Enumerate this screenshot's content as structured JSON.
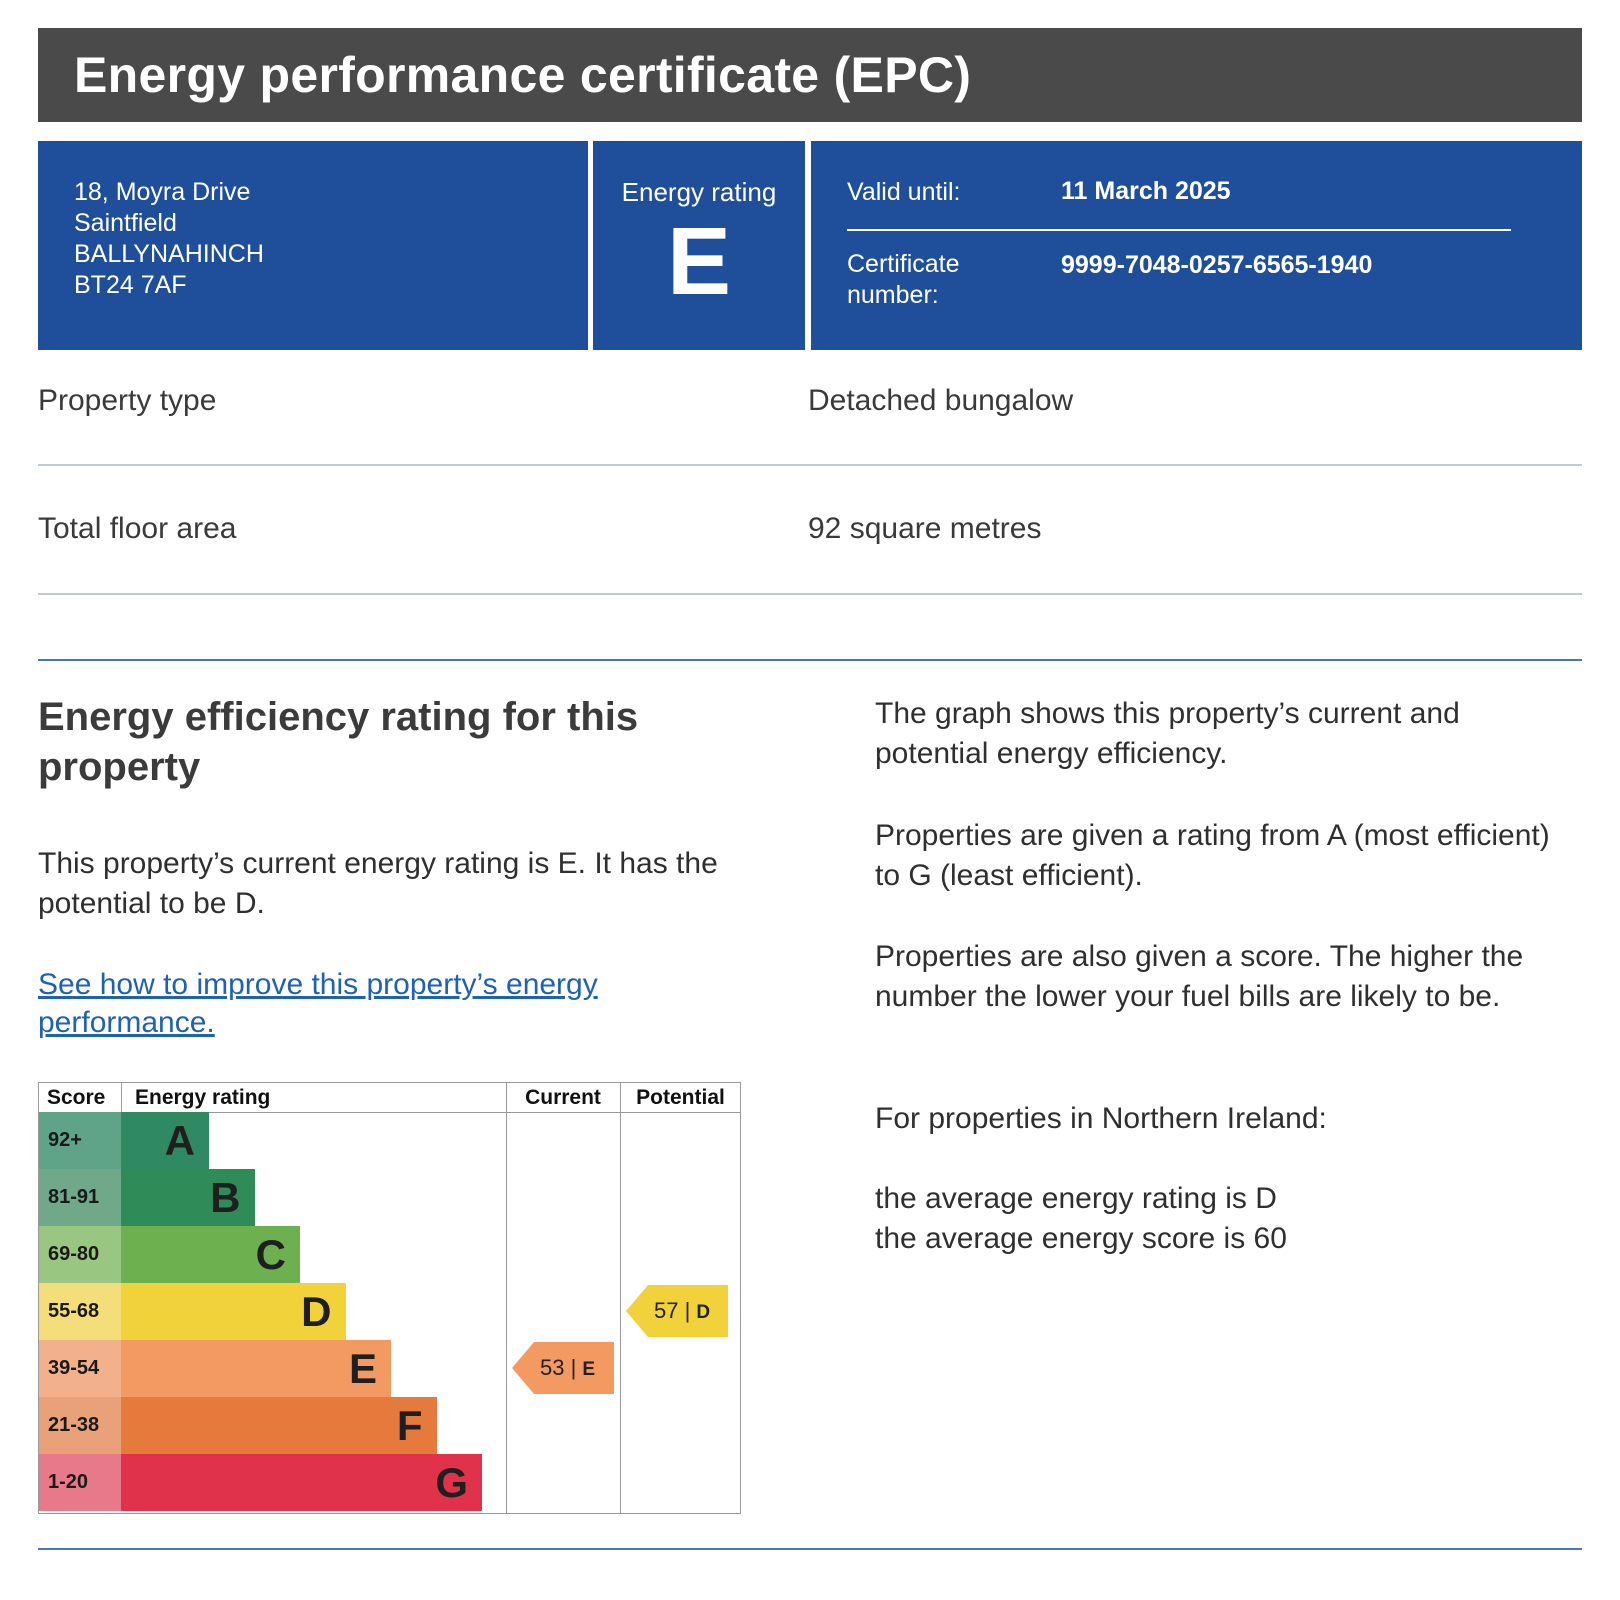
{
  "header": {
    "title": "Energy performance certificate (EPC)"
  },
  "summary": {
    "address": [
      "18, Moyra Drive",
      "Saintfield",
      "BALLYNAHINCH",
      "BT24 7AF"
    ],
    "energy_rating_label": "Energy rating",
    "energy_rating": "E",
    "valid_until_label": "Valid until:",
    "valid_until": "11 March 2025",
    "certificate_label_line1": "Certificate",
    "certificate_label_line2": "number:",
    "certificate_number": "9999-7048-0257-6565-1940"
  },
  "property": {
    "type_label": "Property type",
    "type_value": "Detached bungalow",
    "area_label": "Total floor area",
    "area_value": "92 square metres"
  },
  "efficiency": {
    "heading": "Energy efficiency rating for this property",
    "current_text": "This property’s current energy rating is E. It has the potential to be D.",
    "improve_link": "See how to improve this property’s energy performance.",
    "right_p1": "The graph shows this property’s current and potential energy efficiency.",
    "right_p2": "Properties are given a rating from A (most efficient) to G (least efficient).",
    "right_p3": "Properties are also given a score. The higher the number the lower your fuel bills are likely to be.",
    "right_p4": "For properties in Northern Ireland:",
    "avg_rating_text": "the average energy rating is D",
    "avg_score_text": "the average energy score is 60"
  },
  "chart_data": {
    "type": "bar",
    "headers": {
      "score": "Score",
      "rating": "Energy rating",
      "current": "Current",
      "potential": "Potential"
    },
    "bands": [
      {
        "score": "92+",
        "letter": "A",
        "color": "#2f8a64",
        "score_bg": "#5fa488"
      },
      {
        "score": "81-91",
        "letter": "B",
        "color": "#2f8b57",
        "score_bg": "#6fa98a"
      },
      {
        "score": "69-80",
        "letter": "C",
        "color": "#6db04f",
        "score_bg": "#99c681"
      },
      {
        "score": "55-68",
        "letter": "D",
        "color": "#f2d23a",
        "score_bg": "#f4de7a"
      },
      {
        "score": "39-54",
        "letter": "E",
        "color": "#f39a63",
        "score_bg": "#f2b08c"
      },
      {
        "score": "21-38",
        "letter": "F",
        "color": "#e57a3c",
        "score_bg": "#e9a17a"
      },
      {
        "score": "1-20",
        "letter": "G",
        "color": "#e0334b",
        "score_bg": "#e8798a"
      }
    ],
    "current": {
      "score": 53,
      "score_text": "53",
      "letter": "E",
      "color": "#f39a63"
    },
    "potential": {
      "score": 57,
      "score_text": "57",
      "letter": "D",
      "color": "#f2d23a"
    }
  }
}
